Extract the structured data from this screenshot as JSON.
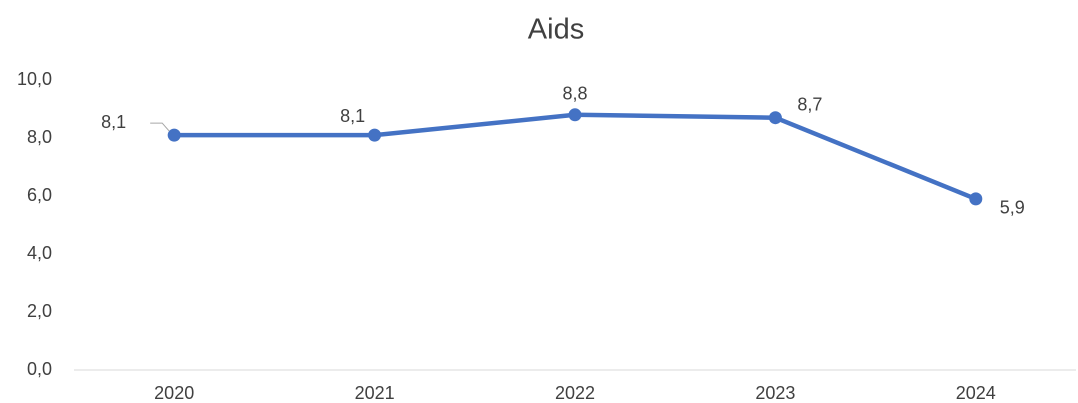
{
  "chart_data": {
    "type": "line",
    "title": "Aids",
    "categories": [
      "2020",
      "2021",
      "2022",
      "2023",
      "2024"
    ],
    "series": [
      {
        "name": "Aids",
        "color": "#4472c4",
        "values": [
          8.1,
          8.1,
          8.8,
          8.7,
          5.9
        ],
        "value_labels": [
          "8,1",
          "8,1",
          "8,8",
          "8,7",
          "5,9"
        ]
      }
    ],
    "ylim": [
      0,
      10
    ],
    "yticks": [
      {
        "value": 0,
        "label": "0,0"
      },
      {
        "value": 2,
        "label": "2,0"
      },
      {
        "value": 4,
        "label": "4,0"
      },
      {
        "value": 6,
        "label": "6,0"
      },
      {
        "value": 8,
        "label": "8,0"
      },
      {
        "value": 10,
        "label": "10,0"
      }
    ],
    "grid": false
  }
}
